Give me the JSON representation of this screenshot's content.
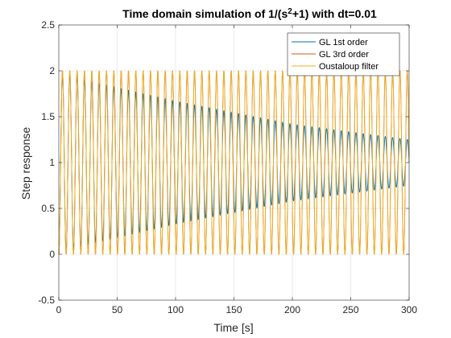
{
  "chart_data": {
    "type": "line",
    "title_prefix": "Time domain simulation of 1/(s",
    "title_sup": "2",
    "title_suffix": "+1) with dt=0.01",
    "xlabel": "Time [s]",
    "ylabel": "Step response",
    "xlim": [
      0,
      300
    ],
    "ylim": [
      -0.5,
      2.5
    ],
    "xticks": [
      0,
      50,
      100,
      150,
      200,
      250,
      300
    ],
    "xtick_labels": [
      "0",
      "50",
      "100",
      "150",
      "200",
      "250",
      "300"
    ],
    "yticks": [
      -0.5,
      0,
      0.5,
      1,
      1.5,
      2,
      2.5
    ],
    "ytick_labels": [
      "-0.5",
      "0",
      "0.5",
      "1",
      "1.5",
      "2",
      "2.5"
    ],
    "grid": true,
    "legend_position": "top-right",
    "signal": {
      "form": "1 - A(t) * cos(omega * t)",
      "omega": 1.0,
      "x_start": 0,
      "x_end": 300
    },
    "series": [
      {
        "name": "GL 1st order",
        "color": "#0072BD",
        "amplitude_at": [
          [
            0,
            1.0
          ],
          [
            25,
            0.89
          ],
          [
            100,
            0.67
          ],
          [
            200,
            0.42
          ],
          [
            300,
            0.25
          ]
        ]
      },
      {
        "name": "GL 3rd order",
        "color": "#D95319",
        "amplitude_at": [
          [
            0,
            1.0
          ],
          [
            300,
            1.0
          ]
        ]
      },
      {
        "name": "Oustaloup filter",
        "color": "#EDB120",
        "amplitude_at": [
          [
            0,
            1.0
          ],
          [
            300,
            1.0
          ]
        ]
      }
    ]
  }
}
